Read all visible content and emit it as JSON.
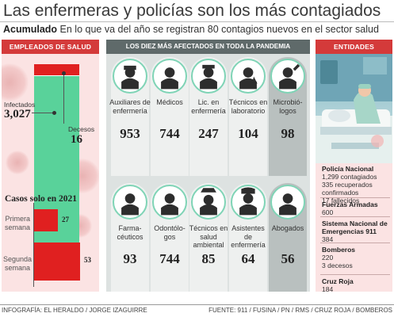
{
  "header": {
    "title": "Las enfermeras y policías son los más contagiados",
    "lead_bold": "Acumulado",
    "lead_text": "En lo que va del año se registran 80 contagios nuevos en el sector salud"
  },
  "left_panel": {
    "title": "EMPLEADOS DE SALUD",
    "infectados_label": "Infectados",
    "infectados_value": "3,027",
    "decesos_label": "Decesos",
    "decesos_value": "16",
    "casos_title": "Casos solo en 2021",
    "weeks": [
      {
        "label_1": "Primera",
        "label_2": "semana",
        "value": "27"
      },
      {
        "label_1": "Segunda",
        "label_2": "semana",
        "value": "53"
      }
    ]
  },
  "chart_data": [
    {
      "type": "bar",
      "title": "EMPLEADOS DE SALUD",
      "categories": [
        "Infectados",
        "Decesos"
      ],
      "values": [
        3027,
        16
      ]
    },
    {
      "type": "bar",
      "title": "Casos solo en 2021",
      "categories": [
        "Primera semana",
        "Segunda semana"
      ],
      "values": [
        27,
        53
      ]
    }
  ],
  "middle_panel": {
    "title": "LOS DIEZ MÁS AFECTADOS EN TODA LA PANDEMIA",
    "professions": [
      {
        "label": "Auxiliares de enfermería",
        "value": "953",
        "icon": "nurse-assistant-icon"
      },
      {
        "label": "Médicos",
        "value": "744",
        "icon": "doctor-icon"
      },
      {
        "label": "Lic. en enfermería",
        "value": "247",
        "icon": "nurse-icon"
      },
      {
        "label": "Técnicos en laboratorio",
        "value": "104",
        "icon": "lab-technician-icon"
      },
      {
        "label": "Microbió-logos",
        "value": "98",
        "icon": "microbiologist-icon"
      },
      {
        "label": "Farma-céuticos",
        "value": "93",
        "icon": "pharmacist-icon"
      },
      {
        "label": "Odontólo-gos",
        "value": "744",
        "icon": "dentist-icon"
      },
      {
        "label": "Técnicos en salud ambiental",
        "value": "85",
        "icon": "environmental-technician-icon"
      },
      {
        "label": "Asistentes de enfermería",
        "value": "64",
        "icon": "nursing-assistant-icon"
      },
      {
        "label": "Abogados",
        "value": "56",
        "icon": "lawyer-icon"
      }
    ]
  },
  "right_panel": {
    "title": "ENTIDADES",
    "entities": [
      {
        "name": "Policía Nacional",
        "lines": [
          "1,299 contagiados",
          "335 recuperados",
          "confirmados",
          "17 fallecidos"
        ]
      },
      {
        "name": "Fuerzas Armadas",
        "lines": [
          "600"
        ]
      },
      {
        "name": "Sistema Nacional de Emergencias 911",
        "lines": [
          "384"
        ]
      },
      {
        "name": "Bomberos",
        "lines": [
          "220",
          "3 decesos"
        ]
      },
      {
        "name": "Cruz Roja",
        "lines": [
          "184"
        ]
      }
    ]
  },
  "footer": {
    "credit": "INFOGRAFÍA: EL HERALDO / JORGE IZAGUIRRE",
    "source": "FUENTE: 911 / FUSINA / PN / RMS / CRUZ ROJA / BOMBEROS"
  },
  "colors": {
    "accent_red": "#d43a3a",
    "bar_red": "#e02020",
    "bar_green": "#59d29a",
    "panel_pink": "#fbe3e3",
    "panel_gray": "#dde2e1",
    "header_gray": "#5f6a6a"
  }
}
